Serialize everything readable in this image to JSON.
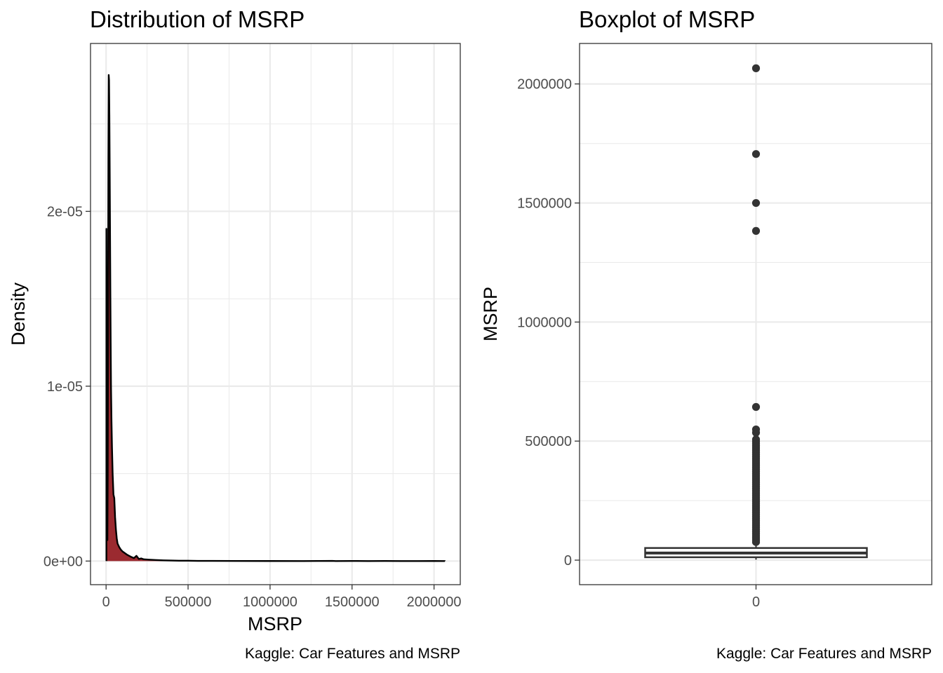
{
  "chart_data": [
    {
      "type": "area",
      "title": "Distribution of MSRP",
      "xlabel": "MSRP",
      "ylabel": "Density",
      "caption": "Kaggle: Car Features and MSRP",
      "xlim": [
        -95000,
        2160000
      ],
      "ylim": [
        -1.35e-06,
        2.96e-05
      ],
      "x_ticks": [
        0,
        500000,
        1000000,
        1500000,
        2000000
      ],
      "x_tick_labels": [
        "0",
        "500000",
        "1000000",
        "1500000",
        "2000000"
      ],
      "y_ticks": [
        0,
        1e-05,
        2e-05
      ],
      "y_tick_labels": [
        "0e+00",
        "1e-05",
        "2e-05"
      ],
      "grid": true,
      "fill_color": "#9b2a30",
      "line_color": "#000000",
      "series": [
        {
          "x": [
            2000,
            4000,
            6000,
            8000,
            10000,
            12000,
            14000,
            16000,
            18000,
            20000,
            22000,
            24000,
            26000,
            28000,
            30000,
            33000,
            36000,
            40000,
            45000,
            50000,
            55000,
            60000,
            65000,
            70000,
            80000,
            90000,
            100000,
            115000,
            130000,
            150000,
            170000,
            185000,
            200000,
            215000,
            230000,
            260000,
            300000,
            350000,
            400000,
            450000,
            500000,
            560000,
            650000,
            800000,
            1000000,
            1200000,
            1380000,
            1400000,
            1500000,
            1600000,
            1700000,
            1800000,
            1900000,
            2000000,
            2065902
          ],
          "y": [
            1.9e-05,
            2.8e-06,
            1.4e-06,
            1.2e-06,
            5e-06,
            1.35e-05,
            2.3e-05,
            2.78e-05,
            2.75e-05,
            2.55e-05,
            2.25e-05,
            1.9e-05,
            1.55e-05,
            1.25e-05,
            1e-05,
            8e-06,
            6.5e-06,
            5e-06,
            3.8e-06,
            3.6e-06,
            2.5e-06,
            1.8e-06,
            1.3e-06,
            1e-06,
            8e-07,
            6.5e-07,
            5.5e-07,
            4.5e-07,
            3.5e-07,
            2.5e-07,
            1.7e-07,
            3e-07,
            1.2e-07,
            1.5e-07,
            1e-07,
            8e-08,
            6e-08,
            4e-08,
            3e-08,
            2e-08,
            2e-08,
            1e-08,
            1e-08,
            5e-09,
            3e-09,
            2e-09,
            1e-08,
            2e-09,
            5e-09,
            2e-09,
            5e-09,
            2e-09,
            2e-09,
            3e-09,
            1e-09
          ]
        }
      ]
    },
    {
      "type": "boxplot",
      "title": "Boxplot of MSRP",
      "xlabel": "",
      "ylabel": "MSRP",
      "caption": "Kaggle: Car Features and MSRP",
      "x_categories": [
        "0"
      ],
      "ylim": [
        -103000,
        2170000
      ],
      "y_ticks": [
        0,
        500000,
        1000000,
        1500000,
        2000000
      ],
      "y_tick_labels": [
        "0",
        "500000",
        "1000000",
        "1500000",
        "2000000"
      ],
      "grid": true,
      "box": {
        "q1": 21000,
        "median": 29995,
        "q3": 42231,
        "whisker_low": 2000,
        "whisker_high": 73000
      },
      "outliers": [
        2065902,
        1705769,
        1500000,
        1382750,
        643330,
        548800,
        535500,
        507000,
        498000,
        489000,
        480000,
        471000,
        462000,
        453000,
        444000,
        435000,
        426000,
        417000,
        408000,
        399000,
        390000,
        381000,
        372000,
        363000,
        354000,
        345000,
        336000,
        327000,
        318000,
        309000,
        300000,
        291000,
        282000,
        273000,
        264000,
        255000,
        246000,
        237000,
        228000,
        219000,
        210000,
        201000,
        192000,
        183000,
        174000,
        165000,
        156000,
        147000,
        138000,
        129000,
        120000,
        111000,
        102000,
        93000,
        84000,
        76000
      ]
    }
  ]
}
